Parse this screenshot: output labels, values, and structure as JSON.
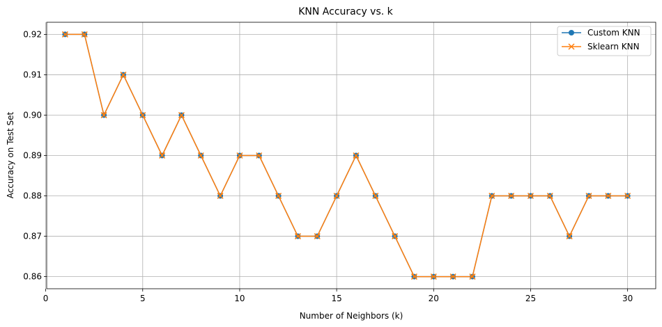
{
  "chart_data": {
    "type": "line",
    "title": "KNN Accuracy vs. k",
    "xlabel": "Number of Neighbors (k)",
    "ylabel": "Accuracy on Test Set",
    "x": [
      1,
      2,
      3,
      4,
      5,
      6,
      7,
      8,
      9,
      10,
      11,
      12,
      13,
      14,
      15,
      16,
      17,
      18,
      19,
      20,
      21,
      22,
      23,
      24,
      25,
      26,
      27,
      28,
      29,
      30
    ],
    "series": [
      {
        "name": "Custom KNN",
        "marker": "o",
        "color": "#1f77b4",
        "values": [
          0.92,
          0.92,
          0.9,
          0.91,
          0.9,
          0.89,
          0.9,
          0.89,
          0.88,
          0.89,
          0.89,
          0.88,
          0.87,
          0.87,
          0.88,
          0.89,
          0.88,
          0.87,
          0.86,
          0.86,
          0.86,
          0.86,
          0.88,
          0.88,
          0.88,
          0.88,
          0.87,
          0.88,
          0.88,
          0.88
        ]
      },
      {
        "name": "Sklearn KNN",
        "marker": "x",
        "color": "#ff7f0e",
        "values": [
          0.92,
          0.92,
          0.9,
          0.91,
          0.9,
          0.89,
          0.9,
          0.89,
          0.88,
          0.89,
          0.89,
          0.88,
          0.87,
          0.87,
          0.88,
          0.89,
          0.88,
          0.87,
          0.86,
          0.86,
          0.86,
          0.86,
          0.88,
          0.88,
          0.88,
          0.88,
          0.87,
          0.88,
          0.88,
          0.88
        ]
      }
    ],
    "xlim": [
      0.05,
      31.45
    ],
    "ylim": [
      0.857,
      0.923
    ],
    "xticks": [
      0,
      5,
      10,
      15,
      20,
      25,
      30
    ],
    "yticks": [
      0.86,
      0.87,
      0.88,
      0.89,
      0.9,
      0.91,
      0.92
    ],
    "xtick_labels": [
      "0",
      "5",
      "10",
      "15",
      "20",
      "25",
      "30"
    ],
    "ytick_labels": [
      "0.86",
      "0.87",
      "0.88",
      "0.89",
      "0.90",
      "0.91",
      "0.92"
    ],
    "grid": true,
    "legend_position": "top-right"
  }
}
